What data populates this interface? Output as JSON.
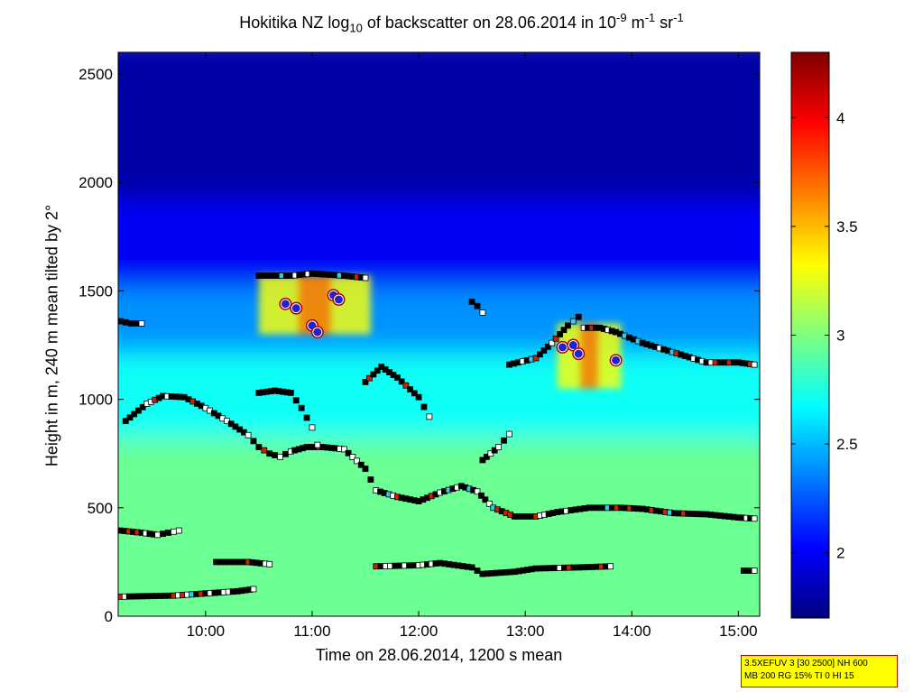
{
  "chart_data": {
    "type": "heatmap",
    "title": "Hokitika NZ log10 of backscatter on 28.06.2014 in 10-9 m-1 sr-1",
    "title_parts": {
      "a": "Hokitika NZ log",
      "sub": "10",
      "b": " of backscatter on 28.06.2014 in 10",
      "sup1": "-9",
      "c": " m",
      "sup2": "-1",
      "d": " sr",
      "sup3": "-1"
    },
    "xlabel": "Time on 28.06.2014, 1200 s mean",
    "ylabel": "Height in m, 240 m mean tilted by 2°",
    "x_range_hours": [
      9.18,
      15.2
    ],
    "ylim": [
      0,
      2600
    ],
    "x_ticks": [
      {
        "value": 10,
        "label": "10:00"
      },
      {
        "value": 11,
        "label": "11:00"
      },
      {
        "value": 12,
        "label": "12:00"
      },
      {
        "value": 13,
        "label": "13:00"
      },
      {
        "value": 14,
        "label": "14:00"
      },
      {
        "value": 15,
        "label": "15:00"
      }
    ],
    "y_ticks": [
      0,
      500,
      1000,
      1500,
      2000,
      2500
    ],
    "colorbar": {
      "range": [
        1.7,
        4.3
      ],
      "ticks": [
        2,
        2.5,
        3,
        3.5,
        4
      ],
      "colormap": "jet"
    },
    "field": {
      "description_levels": "log10 backscatter",
      "layers": [
        {
          "height_from": 0,
          "height_to": 900,
          "value": 2.95
        },
        {
          "height_from": 900,
          "height_to": 1300,
          "value": 2.7
        },
        {
          "height_from": 1300,
          "height_to": 1600,
          "value": 2.4
        },
        {
          "height_from": 1600,
          "height_to": 2000,
          "value": 2.0
        },
        {
          "height_from": 2000,
          "height_to": 2600,
          "value": 1.8
        }
      ]
    },
    "layer_series": [
      {
        "id": "lower-boundary",
        "points": [
          [
            9.2,
            90
          ],
          [
            9.7,
            95
          ],
          [
            10.0,
            105
          ],
          [
            10.3,
            115
          ],
          [
            10.45,
            125
          ]
        ]
      },
      {
        "id": "boundary-10-11",
        "points": [
          [
            10.1,
            250
          ],
          [
            10.4,
            250
          ],
          [
            10.6,
            240
          ]
        ]
      },
      {
        "id": "low-layer-12-14",
        "points": [
          [
            11.6,
            230
          ],
          [
            12.0,
            235
          ],
          [
            12.2,
            245
          ],
          [
            12.5,
            225
          ],
          [
            12.6,
            195
          ],
          [
            12.9,
            205
          ],
          [
            13.1,
            220
          ],
          [
            13.5,
            225
          ],
          [
            13.8,
            230
          ]
        ]
      },
      {
        "id": "early-low",
        "points": [
          [
            9.2,
            395
          ],
          [
            9.4,
            385
          ],
          [
            9.55,
            375
          ],
          [
            9.65,
            385
          ],
          [
            9.75,
            395
          ]
        ]
      },
      {
        "id": "main-mixing-layer",
        "points": [
          [
            9.25,
            900
          ],
          [
            9.45,
            980
          ],
          [
            9.6,
            1015
          ],
          [
            9.8,
            1010
          ],
          [
            10.0,
            960
          ],
          [
            10.2,
            900
          ],
          [
            10.4,
            835
          ],
          [
            10.5,
            780
          ],
          [
            10.6,
            750
          ],
          [
            10.7,
            735
          ],
          [
            10.8,
            760
          ],
          [
            10.95,
            780
          ],
          [
            11.1,
            780
          ],
          [
            11.3,
            770
          ],
          [
            11.5,
            680
          ],
          [
            11.6,
            580
          ],
          [
            11.8,
            550
          ],
          [
            12.0,
            530
          ],
          [
            12.2,
            570
          ],
          [
            12.4,
            600
          ],
          [
            12.55,
            575
          ],
          [
            12.7,
            500
          ],
          [
            12.9,
            460
          ],
          [
            13.1,
            460
          ],
          [
            13.3,
            480
          ],
          [
            13.6,
            500
          ],
          [
            13.9,
            500
          ],
          [
            14.1,
            495
          ],
          [
            14.4,
            475
          ],
          [
            14.7,
            470
          ],
          [
            15.0,
            455
          ],
          [
            15.15,
            450
          ]
        ]
      },
      {
        "id": "mid-layer-11",
        "points": [
          [
            10.5,
            1030
          ],
          [
            10.65,
            1040
          ],
          [
            10.8,
            1030
          ],
          [
            10.9,
            960
          ],
          [
            11.0,
            870
          ],
          [
            11.05,
            790
          ]
        ]
      },
      {
        "id": "cloud-top-1100",
        "points": [
          [
            10.5,
            1570
          ],
          [
            10.8,
            1570
          ],
          [
            11.0,
            1580
          ],
          [
            11.3,
            1570
          ],
          [
            11.5,
            1560
          ]
        ]
      },
      {
        "id": "cloud-1130",
        "points": [
          [
            11.5,
            1080
          ],
          [
            11.65,
            1150
          ],
          [
            11.8,
            1100
          ],
          [
            12.0,
            1010
          ],
          [
            12.1,
            920
          ]
        ]
      },
      {
        "id": "cloud-12",
        "points": [
          [
            12.6,
            720
          ],
          [
            12.75,
            780
          ],
          [
            12.85,
            840
          ]
        ]
      },
      {
        "id": "cloud-13",
        "points": [
          [
            12.85,
            1160
          ],
          [
            13.1,
            1190
          ],
          [
            13.25,
            1260
          ],
          [
            13.4,
            1340
          ],
          [
            13.5,
            1380
          ],
          [
            13.55,
            1330
          ],
          [
            13.7,
            1330
          ],
          [
            13.85,
            1310
          ],
          [
            14.1,
            1260
          ],
          [
            14.3,
            1230
          ],
          [
            14.5,
            1200
          ],
          [
            14.7,
            1170
          ],
          [
            15.0,
            1170
          ],
          [
            15.15,
            1160
          ]
        ]
      },
      {
        "id": "isolated-1",
        "points": [
          [
            9.2,
            1360
          ],
          [
            9.3,
            1350
          ],
          [
            9.4,
            1350
          ]
        ]
      },
      {
        "id": "isolated-2",
        "points": [
          [
            12.5,
            1450
          ],
          [
            12.55,
            1430
          ],
          [
            12.6,
            1400
          ]
        ]
      },
      {
        "id": "isolated-3",
        "points": [
          [
            15.05,
            210
          ],
          [
            15.15,
            210
          ]
        ]
      }
    ],
    "cloud_base_markers": [
      [
        10.75,
        1440
      ],
      [
        10.85,
        1420
      ],
      [
        11.0,
        1340
      ],
      [
        11.05,
        1310
      ],
      [
        11.2,
        1480
      ],
      [
        11.25,
        1460
      ],
      [
        13.35,
        1240
      ],
      [
        13.45,
        1250
      ],
      [
        13.5,
        1210
      ],
      [
        13.85,
        1180
      ]
    ],
    "precip_patches": [
      {
        "x_from": 10.5,
        "x_to": 11.55,
        "y_from": 1300,
        "y_to": 1570
      },
      {
        "x_from": 13.3,
        "x_to": 13.9,
        "y_from": 1050,
        "y_to": 1350
      }
    ]
  },
  "infobox": {
    "line1": "3.5XEFUV 3 [30 2500] NH 600",
    "line2": "MB 200 RG 15% TI 0 HI 15"
  }
}
